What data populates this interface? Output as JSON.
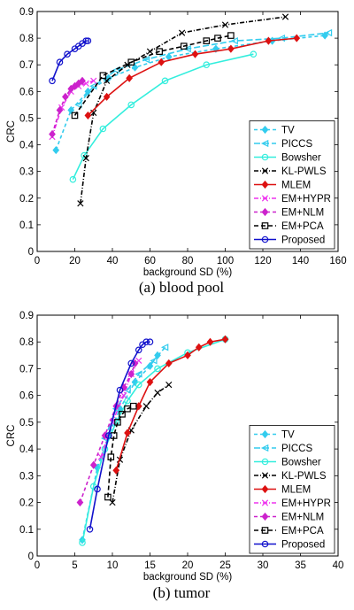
{
  "captions": [
    "(a) blood pool",
    "(b) tumor"
  ],
  "chart_data": [
    {
      "type": "line",
      "xlabel": "background SD (%)",
      "ylabel": "CRC",
      "xlim": [
        0,
        160
      ],
      "ylim": [
        0,
        0.9
      ],
      "xticks": [
        0,
        20,
        40,
        60,
        80,
        100,
        120,
        140,
        160
      ],
      "yticks": [
        0,
        0.1,
        0.2,
        0.3,
        0.4,
        0.5,
        0.6,
        0.7,
        0.8,
        0.9
      ],
      "grid": false,
      "legend_position": "bottom-right",
      "series": [
        {
          "name": "TV",
          "color": "#33ccee",
          "dash": "4,3",
          "marker": "diamond",
          "x": [
            10,
            18,
            27,
            38,
            52,
            70,
            95,
            125,
            153
          ],
          "y": [
            0.38,
            0.53,
            0.6,
            0.65,
            0.69,
            0.73,
            0.76,
            0.79,
            0.81
          ]
        },
        {
          "name": "PICCS",
          "color": "#33ccee",
          "dash": "7,3",
          "marker": "triangle",
          "x": [
            22,
            30,
            42,
            58,
            80,
            105,
            130,
            155
          ],
          "y": [
            0.55,
            0.62,
            0.68,
            0.72,
            0.76,
            0.79,
            0.8,
            0.82
          ]
        },
        {
          "name": "Bowsher",
          "color": "#33eedd",
          "dash": "",
          "marker": "circle",
          "x": [
            19,
            25,
            35,
            50,
            68,
            90,
            115
          ],
          "y": [
            0.27,
            0.36,
            0.46,
            0.55,
            0.64,
            0.7,
            0.74
          ]
        },
        {
          "name": "KL-PWLS",
          "color": "#000000",
          "dash": "5,2,1,2",
          "marker": "x",
          "x": [
            23,
            26,
            30,
            37,
            48,
            60,
            77,
            100,
            132
          ],
          "y": [
            0.18,
            0.35,
            0.52,
            0.64,
            0.7,
            0.75,
            0.82,
            0.85,
            0.88
          ]
        },
        {
          "name": "MLEM",
          "color": "#dd1111",
          "dash": "",
          "marker": "diamond",
          "x": [
            27,
            37,
            49,
            66,
            84,
            103,
            123,
            138
          ],
          "y": [
            0.51,
            0.58,
            0.65,
            0.71,
            0.74,
            0.76,
            0.79,
            0.8
          ]
        },
        {
          "name": "EM+HYPR",
          "color": "#ee33ee",
          "dash": "5,2,1,2",
          "marker": "x",
          "x": [
            8,
            13,
            18,
            22,
            26,
            30
          ],
          "y": [
            0.43,
            0.54,
            0.6,
            0.62,
            0.63,
            0.64
          ]
        },
        {
          "name": "EM+NLM",
          "color": "#cc22cc",
          "dash": "4,3",
          "marker": "diamond",
          "x": [
            8,
            12,
            15,
            18,
            20,
            22,
            24
          ],
          "y": [
            0.44,
            0.53,
            0.58,
            0.61,
            0.62,
            0.63,
            0.64
          ]
        },
        {
          "name": "EM+PCA",
          "color": "#000000",
          "dash": "5,3",
          "marker": "square",
          "x": [
            20,
            35,
            50,
            65,
            78,
            90,
            96,
            103
          ],
          "y": [
            0.51,
            0.66,
            0.71,
            0.75,
            0.77,
            0.79,
            0.8,
            0.81
          ]
        },
        {
          "name": "Proposed",
          "color": "#1111cc",
          "dash": "",
          "marker": "circle",
          "x": [
            8,
            12,
            16,
            20,
            22,
            24,
            26,
            27
          ],
          "y": [
            0.64,
            0.71,
            0.74,
            0.76,
            0.77,
            0.78,
            0.79,
            0.79
          ]
        }
      ]
    },
    {
      "type": "line",
      "xlabel": "background SD (%)",
      "ylabel": "CRC",
      "xlim": [
        0,
        40
      ],
      "ylim": [
        0,
        0.9
      ],
      "xticks": [
        0,
        5,
        10,
        15,
        20,
        25,
        30,
        35,
        40
      ],
      "yticks": [
        0,
        0.1,
        0.2,
        0.3,
        0.4,
        0.5,
        0.6,
        0.7,
        0.8,
        0.9
      ],
      "grid": false,
      "legend_position": "bottom-right",
      "series": [
        {
          "name": "TV",
          "color": "#33ccee",
          "dash": "4,3",
          "marker": "diamond",
          "x": [
            6,
            8,
            9.5,
            11,
            13,
            15,
            16
          ],
          "y": [
            0.06,
            0.33,
            0.45,
            0.55,
            0.65,
            0.71,
            0.75
          ]
        },
        {
          "name": "PICCS",
          "color": "#33ccee",
          "dash": "7,3",
          "marker": "triangle",
          "x": [
            9,
            10.5,
            12,
            13.5,
            15.5,
            17
          ],
          "y": [
            0.44,
            0.55,
            0.62,
            0.68,
            0.73,
            0.78
          ]
        },
        {
          "name": "Bowsher",
          "color": "#33eedd",
          "dash": "",
          "marker": "circle",
          "x": [
            6,
            7.5,
            9,
            10.5,
            12,
            13.5,
            16,
            20,
            25
          ],
          "y": [
            0.05,
            0.26,
            0.4,
            0.5,
            0.58,
            0.64,
            0.7,
            0.76,
            0.81
          ]
        },
        {
          "name": "KL-PWLS",
          "color": "#000000",
          "dash": "5,2,1,2",
          "marker": "x",
          "x": [
            10,
            11,
            12.5,
            14.5,
            16,
            17.5
          ],
          "y": [
            0.2,
            0.36,
            0.47,
            0.56,
            0.61,
            0.64
          ]
        },
        {
          "name": "MLEM",
          "color": "#dd1111",
          "dash": "",
          "marker": "diamond",
          "x": [
            10.5,
            12,
            13.5,
            15,
            17.5,
            20,
            21.5,
            23,
            25
          ],
          "y": [
            0.32,
            0.46,
            0.56,
            0.65,
            0.72,
            0.75,
            0.78,
            0.8,
            0.81
          ]
        },
        {
          "name": "EM+HYPR",
          "color": "#ee33ee",
          "dash": "5,2,1,2",
          "marker": "x",
          "x": [
            8.5,
            10,
            11.5,
            12.5,
            13.5
          ],
          "y": [
            0.37,
            0.5,
            0.6,
            0.68,
            0.73
          ]
        },
        {
          "name": "EM+NLM",
          "color": "#cc22cc",
          "dash": "4,3",
          "marker": "diamond",
          "x": [
            5.7,
            7.5,
            9,
            10.5,
            11.5,
            12.5,
            13
          ],
          "y": [
            0.2,
            0.34,
            0.45,
            0.56,
            0.63,
            0.68,
            0.72
          ]
        },
        {
          "name": "EM+PCA",
          "color": "#000000",
          "dash": "5,3",
          "marker": "square",
          "x": [
            9.4,
            9.8,
            10.2,
            10.7,
            11.3,
            12,
            12.8
          ],
          "y": [
            0.22,
            0.37,
            0.45,
            0.5,
            0.53,
            0.55,
            0.56
          ]
        },
        {
          "name": "Proposed",
          "color": "#1111cc",
          "dash": "",
          "marker": "circle",
          "x": [
            7,
            8,
            9.5,
            11,
            12.5,
            13.5,
            14,
            14.5,
            15
          ],
          "y": [
            0.1,
            0.25,
            0.45,
            0.62,
            0.72,
            0.77,
            0.79,
            0.8,
            0.8
          ]
        }
      ]
    }
  ]
}
